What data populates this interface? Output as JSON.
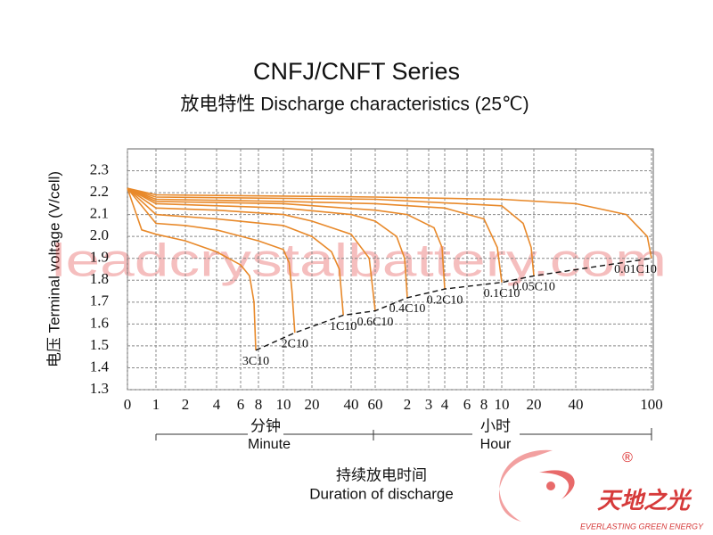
{
  "chart_data": {
    "type": "line",
    "title": "CNFJ/CNFT Series",
    "subtitle": "放电特性 Discharge characteristics (25℃)",
    "y_label": "电压 Terminal voltage (V/cell)",
    "x_label": "持续放电时间",
    "x_label_en": "Duration of discharge",
    "minute_label": "分钟",
    "minute_label_en": "Minute",
    "hour_label": "小时",
    "hour_label_en": "Hour",
    "watermark": "leadcrystalbattery.com",
    "brand": "天地之光",
    "brand_tagline": "EVERLASTING GREEN ENERGY",
    "brand_mark": "®",
    "ylim": [
      1.3,
      2.4
    ],
    "yticks": [
      1.3,
      1.4,
      1.5,
      1.6,
      1.7,
      1.8,
      1.9,
      {
        "value": 2,
        "label": "2.0"
      },
      2.1,
      2.2,
      2.3
    ],
    "xlim": [
      0,
      6000
    ],
    "xticks": [
      0,
      1,
      2,
      4,
      6,
      8,
      10,
      20,
      40,
      60,
      {
        "value": 120,
        "label": "2"
      },
      {
        "value": 180,
        "label": "3"
      },
      {
        "value": 240,
        "label": "4"
      },
      {
        "value": 360,
        "label": "6"
      },
      {
        "value": 480,
        "label": "8"
      },
      {
        "value": 600,
        "label": "10"
      },
      {
        "value": 1200,
        "label": "20"
      },
      {
        "value": 2400,
        "label": "40"
      },
      {
        "value": 6000,
        "label": "100"
      }
    ],
    "grid": true,
    "color": "#e8892a",
    "series": [
      {
        "name": "3C10",
        "x": [
          0,
          0.5,
          1,
          2,
          4,
          6,
          7,
          7.5,
          7.7
        ],
        "values": [
          2.22,
          2.03,
          2.01,
          1.98,
          1.93,
          1.87,
          1.82,
          1.7,
          1.48
        ]
      },
      {
        "name": "2C10",
        "x": [
          0,
          1,
          2,
          4,
          8,
          10,
          12,
          13,
          14
        ],
        "values": [
          2.22,
          2.06,
          2.05,
          2.03,
          1.98,
          1.94,
          1.88,
          1.75,
          1.56
        ]
      },
      {
        "name": "1C10",
        "x": [
          0,
          1,
          4,
          10,
          20,
          30,
          34,
          36
        ],
        "values": [
          2.22,
          2.1,
          2.08,
          2.05,
          2.0,
          1.93,
          1.85,
          1.64
        ]
      },
      {
        "name": "0.6C10",
        "x": [
          0,
          1,
          4,
          10,
          20,
          40,
          55,
          60
        ],
        "values": [
          2.22,
          2.13,
          2.12,
          2.1,
          2.07,
          2.01,
          1.9,
          1.66
        ]
      },
      {
        "name": "0.4C10",
        "x": [
          0,
          1,
          10,
          40,
          60,
          100,
          115,
          120
        ],
        "values": [
          2.22,
          2.15,
          2.13,
          2.1,
          2.07,
          2.0,
          1.9,
          1.72
        ]
      },
      {
        "name": "0.2C10",
        "x": [
          0,
          1,
          10,
          60,
          120,
          200,
          230,
          240
        ],
        "values": [
          2.22,
          2.16,
          2.15,
          2.12,
          2.1,
          2.04,
          1.95,
          1.76
        ]
      },
      {
        "name": "0.1C10",
        "x": [
          0,
          1,
          10,
          60,
          240,
          480,
          570,
          600
        ],
        "values": [
          2.22,
          2.17,
          2.16,
          2.15,
          2.13,
          2.08,
          1.95,
          1.79
        ]
      },
      {
        "name": "0.05C10",
        "x": [
          0,
          1,
          60,
          600,
          1000,
          1150,
          1200
        ],
        "values": [
          2.22,
          2.18,
          2.17,
          2.14,
          2.06,
          1.95,
          1.82
        ]
      },
      {
        "name": "0.01C10",
        "x": [
          0,
          1,
          60,
          600,
          2400,
          4800,
          5800,
          6000
        ],
        "values": [
          2.22,
          2.19,
          2.18,
          2.17,
          2.15,
          2.1,
          2.0,
          1.9
        ]
      }
    ],
    "end_voltage": {
      "x": [
        7.7,
        14,
        36,
        60,
        120,
        240,
        600,
        1200,
        6000
      ],
      "values": [
        1.48,
        1.56,
        1.64,
        1.66,
        1.72,
        1.76,
        1.79,
        1.82,
        1.9
      ]
    }
  }
}
